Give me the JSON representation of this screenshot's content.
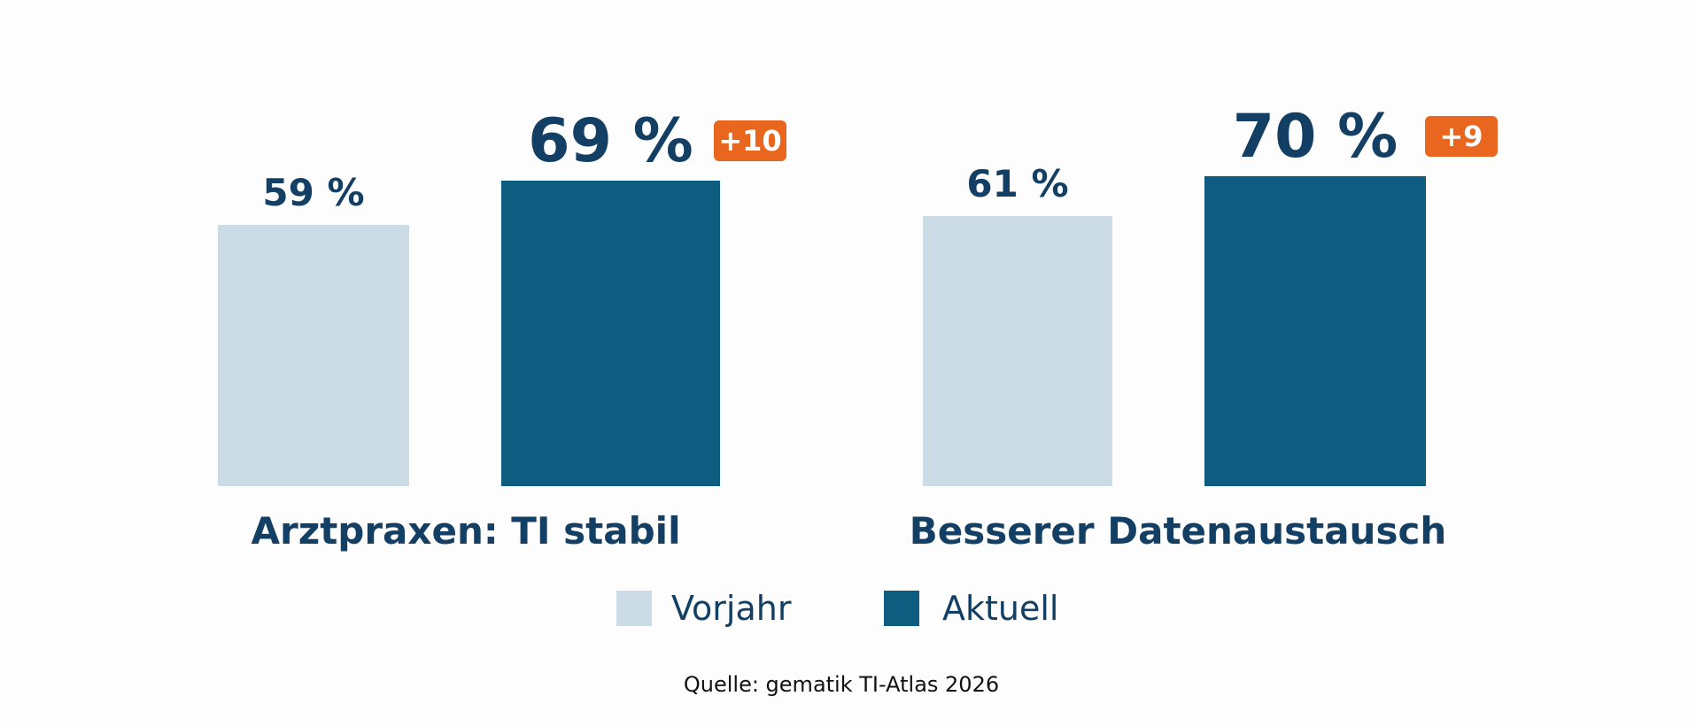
{
  "chart_data": {
    "type": "bar",
    "categories": [
      "Arztpraxen: TI stabil",
      "Besserer Datenaustausch"
    ],
    "series": [
      {
        "name": "Vorjahr",
        "values": [
          59,
          61
        ],
        "labels": [
          "59 %",
          "61 %"
        ]
      },
      {
        "name": "Aktuell",
        "values": [
          69,
          70
        ],
        "labels": [
          "69 %",
          "70 %"
        ]
      }
    ],
    "deltas": [
      "+10",
      "+9"
    ],
    "ylim": [
      0,
      100
    ],
    "grid": false,
    "legend_position": "bottom-center",
    "source": "Quelle: gematik TI-Atlas 2026"
  },
  "colors": {
    "vorjahr": "#cbdce6",
    "aktuell": "#0e5c7f",
    "delta_badge": "#e8661d",
    "text": "#123f63"
  }
}
